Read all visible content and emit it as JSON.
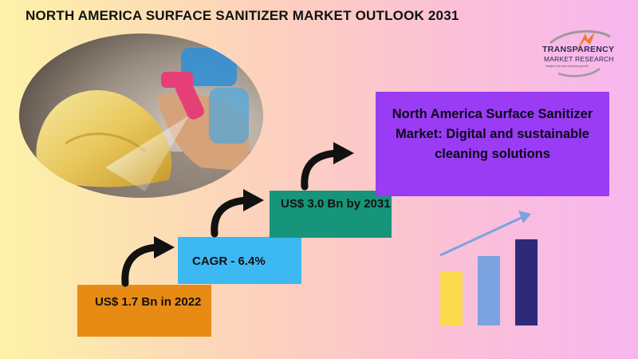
{
  "title": "NORTH AMERICA SURFACE SANITIZER MARKET OUTLOOK 2031",
  "logo": {
    "name": "TRANSPARENCY",
    "sub": "MARKET RESEARCH",
    "tagline": "Insights that drive business growth"
  },
  "steps": {
    "value_2022": "US$ 1.7 Bn in 2022",
    "cagr": "CAGR - 6.4%",
    "value_2031": "US$ 3.0 Bn by 2031"
  },
  "headline": "North America Surface Sanitizer Market: Digital and sustainable cleaning solutions",
  "illustration": {
    "photo": "spray-bottle-cleaning-photo",
    "growth": "bar-growth-icon"
  },
  "colors": {
    "step1": "#e88b14",
    "step2": "#3cb9f2",
    "step3": "#16957a",
    "headline_box": "#9a3cf3"
  }
}
